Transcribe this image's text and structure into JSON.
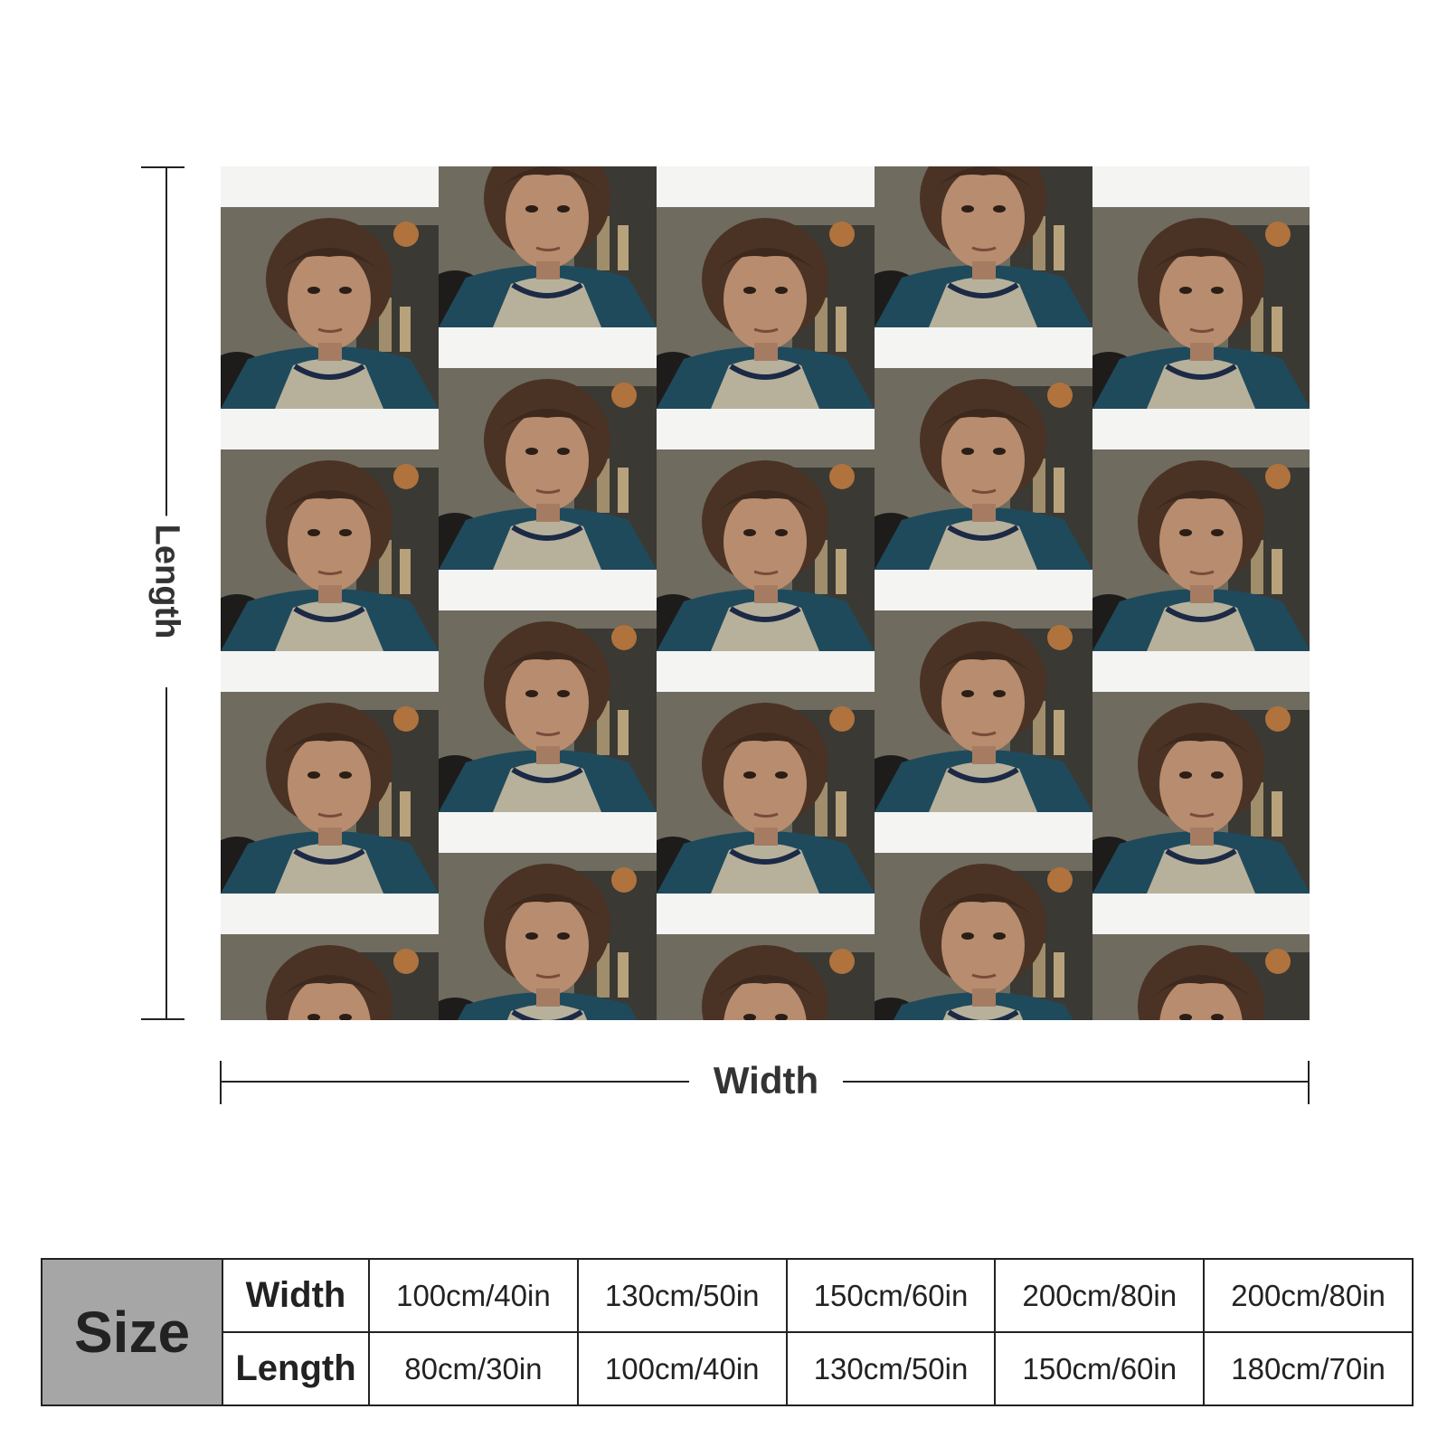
{
  "labels": {
    "length": "Length",
    "width": "Width"
  },
  "product": {
    "pattern": "repeating portrait photo tile with white bands"
  },
  "size_table": {
    "header": "Size",
    "width_label": "Width",
    "length_label": "Length",
    "widths": [
      "100cm/40in",
      "130cm/50in",
      "150cm/60in",
      "200cm/80in",
      "200cm/80in"
    ],
    "lengths": [
      "80cm/30in",
      "100cm/40in",
      "130cm/50in",
      "150cm/60in",
      "180cm/70in"
    ]
  }
}
